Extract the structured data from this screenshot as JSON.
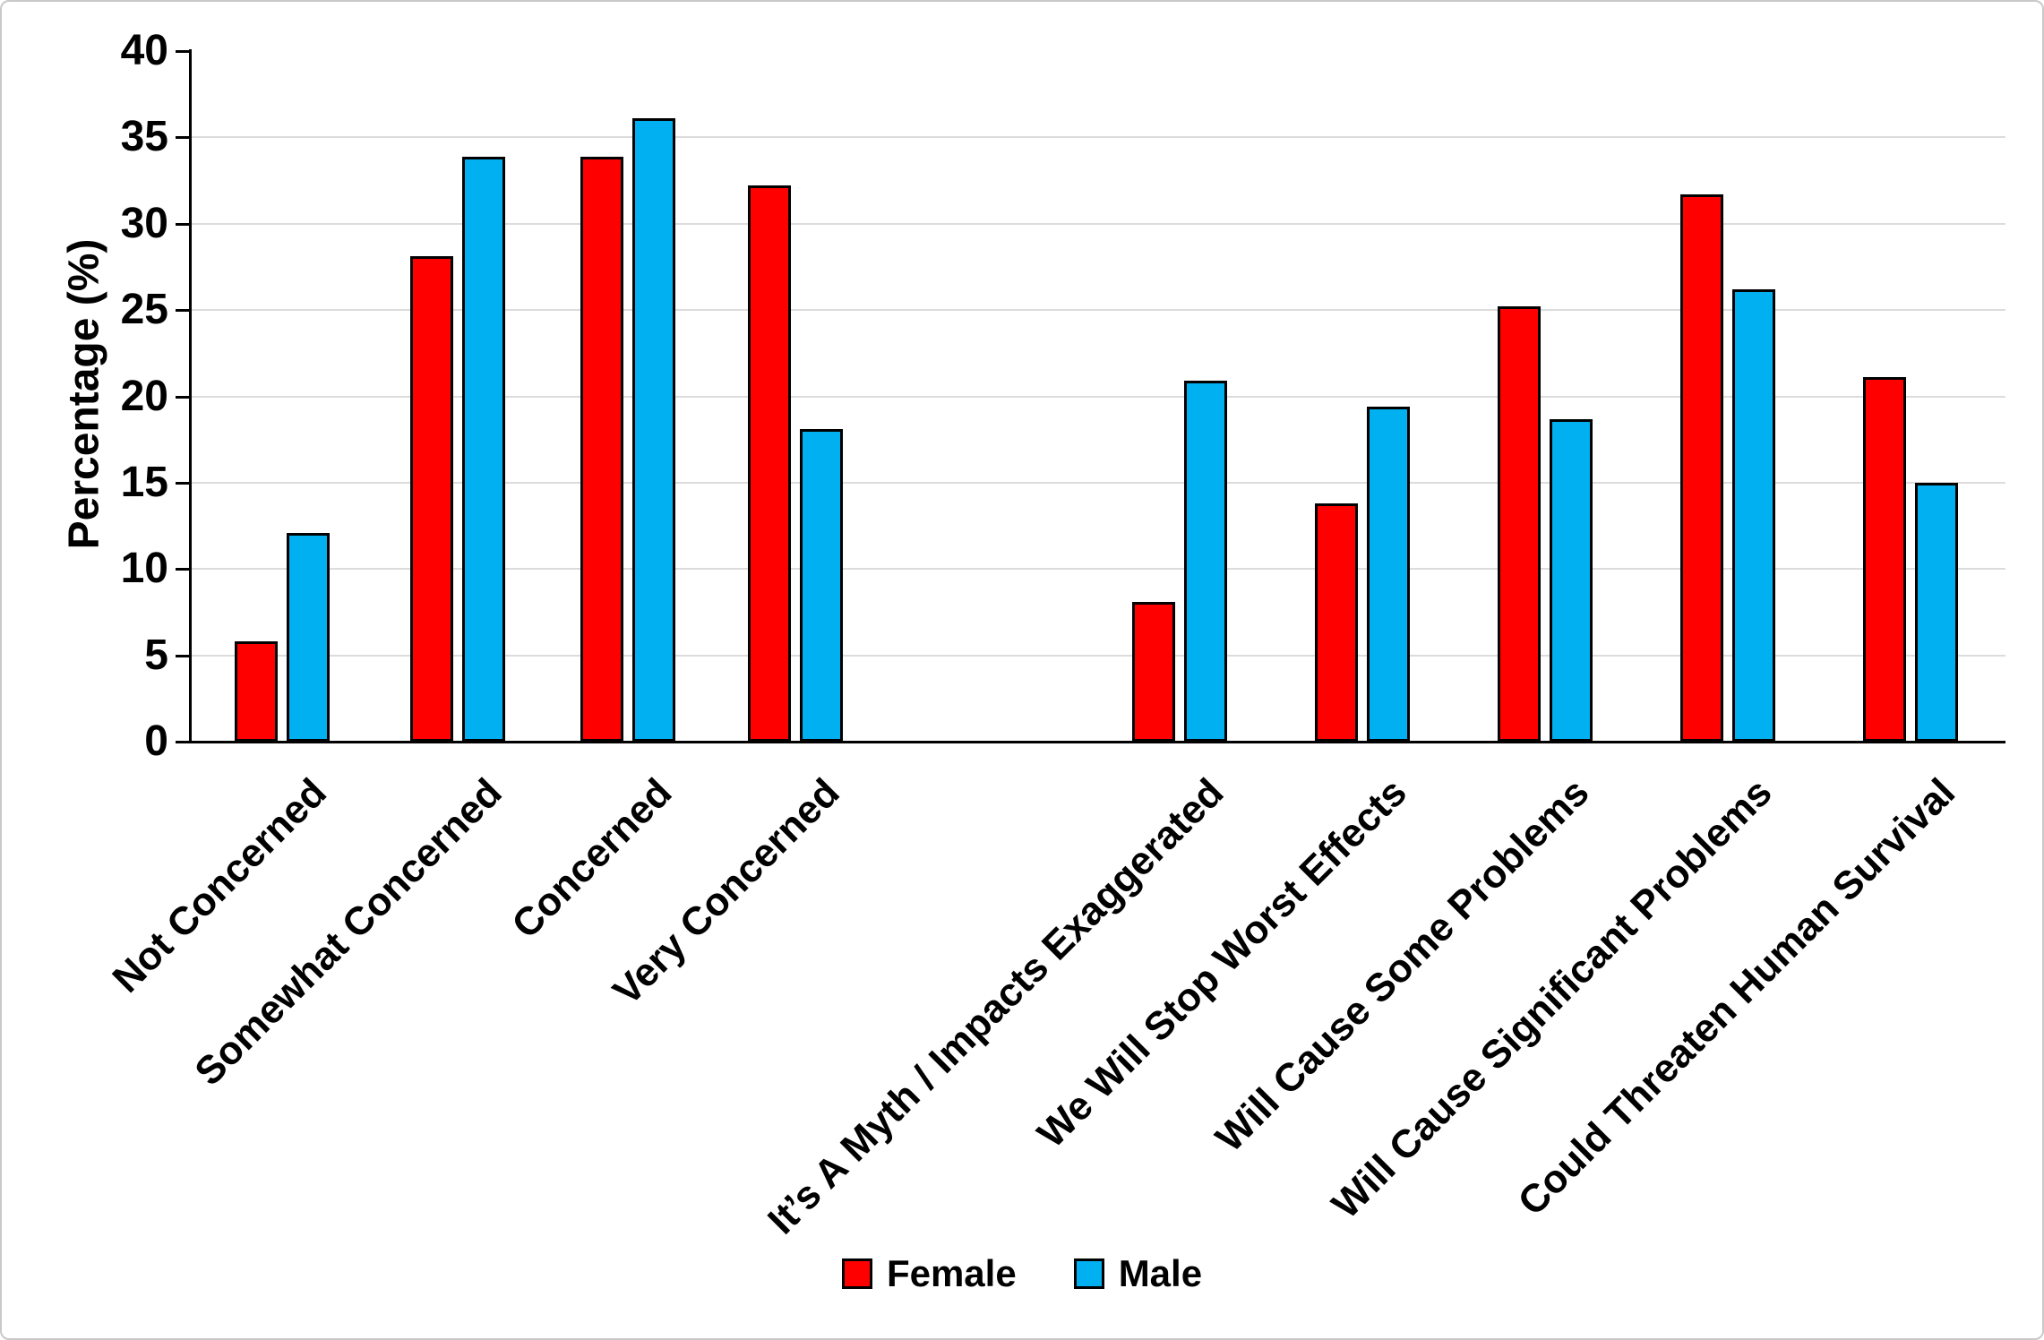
{
  "chart_data": {
    "type": "bar",
    "title": "",
    "xlabel": "",
    "ylabel": "Percentage (%)",
    "ylim": [
      0,
      40
    ],
    "ytick_step": 5,
    "y_tick_labels": [
      "0",
      "5",
      "10",
      "15",
      "20",
      "25",
      "30",
      "35",
      "40"
    ],
    "grid": true,
    "gridline_color": "#dcdcdc",
    "legend_position": "bottom",
    "categories": [
      "Not Concerned",
      "Somewhat Concerned",
      "Concerned",
      "Very Concerned",
      "It’s A Myth / Impacts Exaggerated",
      "We Will Stop Worst Effects",
      "Will Cause Some Problems",
      "Will Cause Significant Problems",
      "Could Threaten Human Survival"
    ],
    "block_break_after_category_index": 3,
    "series": [
      {
        "name": "Female",
        "color": "#FF0000",
        "values": [
          5.8,
          28.1,
          33.9,
          32.2,
          8.1,
          13.8,
          25.2,
          31.7,
          21.1
        ]
      },
      {
        "name": "Male",
        "color": "#00B0F0",
        "values": [
          12.1,
          33.9,
          36.1,
          18.1,
          20.9,
          19.4,
          18.7,
          26.2,
          15.0
        ]
      }
    ]
  },
  "legend": {
    "items": [
      {
        "label": "Female",
        "color": "#FF0000"
      },
      {
        "label": "Male",
        "color": "#00B0F0"
      }
    ]
  }
}
